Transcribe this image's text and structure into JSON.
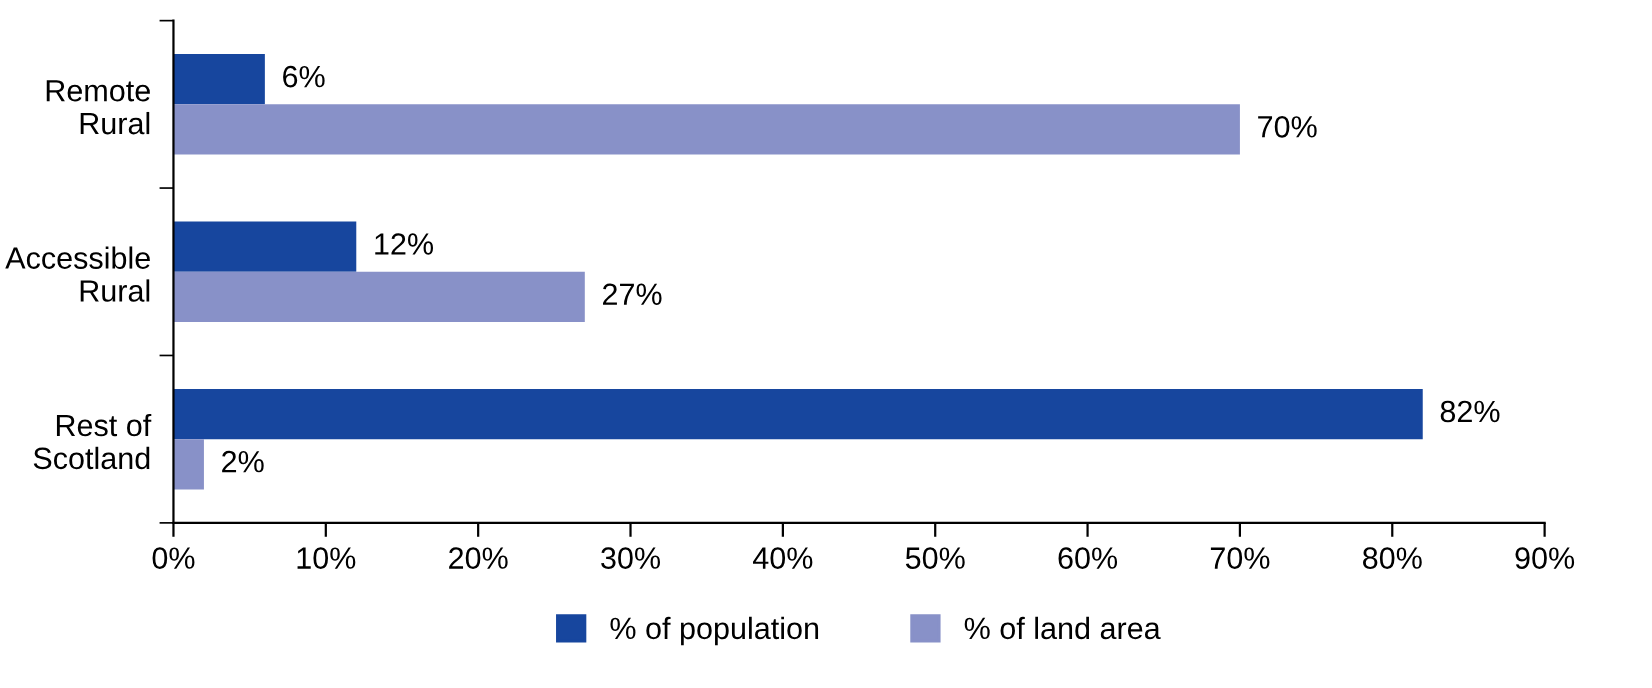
{
  "chart_data": {
    "type": "bar",
    "orientation": "horizontal",
    "categories": [
      "Remote\nRural",
      "Accessible\nRural",
      "Rest of\nScotland"
    ],
    "series": [
      {
        "name": "% of population",
        "color": "#17469e",
        "values": [
          6,
          12,
          82
        ],
        "value_labels": [
          "6%",
          "12%",
          "82%"
        ]
      },
      {
        "name": "% of land area",
        "color": "#8891c8",
        "values": [
          70,
          27,
          2
        ],
        "value_labels": [
          "70%",
          "27%",
          "2%"
        ]
      }
    ],
    "xlim": [
      0,
      90
    ],
    "xticks": [
      {
        "value": 0,
        "label": "0%"
      },
      {
        "value": 10,
        "label": "10%"
      },
      {
        "value": 20,
        "label": "20%"
      },
      {
        "value": 30,
        "label": "30%"
      },
      {
        "value": 40,
        "label": "40%"
      },
      {
        "value": 50,
        "label": "50%"
      },
      {
        "value": 60,
        "label": "60%"
      },
      {
        "value": 70,
        "label": "70%"
      },
      {
        "value": 80,
        "label": "80%"
      },
      {
        "value": 90,
        "label": "90%"
      }
    ],
    "grid": false,
    "legend": "bottom"
  }
}
